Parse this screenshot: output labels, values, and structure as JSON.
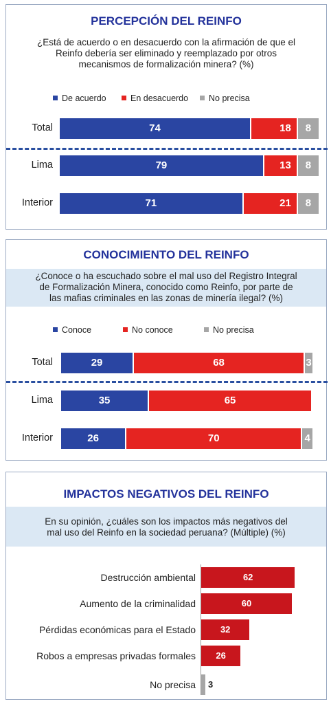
{
  "colors": {
    "blue": "#2a45a2",
    "red": "#e52421",
    "gray": "#a6a6a6",
    "darkred": "#c8161d",
    "title_blue": "#23329b",
    "question_bg": "#dbe8f4"
  },
  "panel1": {
    "title": "PERCEPCIÓN DEL REINFO",
    "question_lines": [
      "¿Está de acuerdo o en desacuerdo con la afirmación de que el",
      "Reinfo debería ser eliminado y reemplazado por otros",
      "mecanismos de formalización minera? (%)"
    ]
  },
  "panel2": {
    "title": "CONOCIMIENTO DEL REINFO",
    "question_lines": [
      "¿Conoce o ha escuchado sobre el mal uso del Registro Integral",
      "de Formalización Minera, conocido como Reinfo, por parte de",
      "las mafias criminales en las zonas de minería ilegal? (%)"
    ]
  },
  "panel3": {
    "title": "IMPACTOS NEGATIVOS DEL REINFO",
    "question_lines": [
      "En su opinión, ¿cuáles son los impactos más negativos del",
      "mal uso del Reinfo en la sociedad peruana? (Múltiple) (%)"
    ]
  },
  "chart_data": [
    {
      "type": "bar",
      "orientation": "horizontal-stacked",
      "title": "PERCEPCIÓN DEL REINFO",
      "categories": [
        "Total",
        "Lima",
        "Interior"
      ],
      "series": [
        {
          "name": "De acuerdo",
          "values": [
            74,
            79,
            71
          ],
          "color": "#2a45a2"
        },
        {
          "name": "En desacuerdo",
          "values": [
            18,
            13,
            21
          ],
          "color": "#e52421"
        },
        {
          "name": "No precisa",
          "values": [
            8,
            8,
            8
          ],
          "color": "#a6a6a6"
        }
      ],
      "legend_position": "top"
    },
    {
      "type": "bar",
      "orientation": "horizontal-stacked",
      "title": "CONOCIMIENTO DEL REINFO",
      "categories": [
        "Total",
        "Lima",
        "Interior"
      ],
      "series": [
        {
          "name": "Conoce",
          "values": [
            29,
            35,
            26
          ],
          "color": "#2a45a2"
        },
        {
          "name": "No conoce",
          "values": [
            68,
            65,
            70
          ],
          "color": "#e52421"
        },
        {
          "name": "No precisa",
          "values": [
            3,
            0,
            4
          ],
          "color": "#a6a6a6"
        }
      ],
      "legend_position": "top"
    },
    {
      "type": "bar",
      "orientation": "horizontal",
      "title": "IMPACTOS NEGATIVOS DEL REINFO",
      "categories": [
        "Destrucción ambiental",
        "Aumento de la criminalidad",
        "Pérdidas económicas para el Estado",
        "Robos a empresas privadas formales",
        "No precisa"
      ],
      "values": [
        62,
        60,
        32,
        26,
        3
      ],
      "colors": [
        "#c8161d",
        "#c8161d",
        "#c8161d",
        "#c8161d",
        "#a6a6a6"
      ]
    }
  ]
}
